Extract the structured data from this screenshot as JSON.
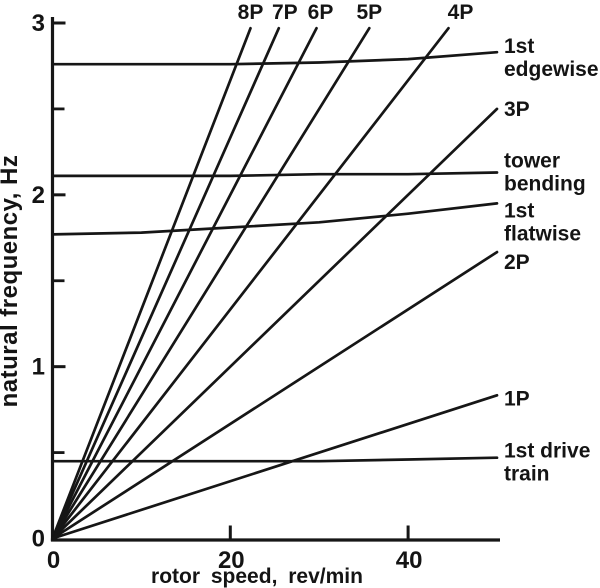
{
  "chart_data": {
    "type": "line",
    "title": "",
    "xlabel": "rotor speed, rev/min",
    "ylabel": "natural frequency, Hz",
    "xlim": [
      0,
      50
    ],
    "ylim": [
      0,
      3
    ],
    "x_ticks_major": [
      0,
      20,
      40
    ],
    "y_ticks_major": [
      0,
      1,
      2,
      3
    ],
    "y_ticks_minor": [
      0.5,
      1.5,
      2.5
    ],
    "grid": false,
    "legend_position": "inline-end-labels",
    "ink_color": "#161616",
    "background_color": "#ffffff",
    "harmonics_rule": "nP line: frequency (Hz) = n x rotor speed (rev/min) / 60",
    "harmonic_display_cap_hz": 2.97,
    "series": [
      {
        "name": "8P",
        "kind": "per_rev_harmonic",
        "per_rev": 8,
        "label": "8P",
        "label_placement": "top"
      },
      {
        "name": "7P",
        "kind": "per_rev_harmonic",
        "per_rev": 7,
        "label": "7P",
        "label_placement": "top",
        "label_dx": 6
      },
      {
        "name": "6P",
        "kind": "per_rev_harmonic",
        "per_rev": 6,
        "label": "6P",
        "label_placement": "top",
        "label_dx": 4
      },
      {
        "name": "5P",
        "kind": "per_rev_harmonic",
        "per_rev": 5,
        "label": "5P",
        "label_placement": "top"
      },
      {
        "name": "4P",
        "kind": "per_rev_harmonic",
        "per_rev": 4,
        "label": "4P",
        "label_placement": "top",
        "label_dx": 12
      },
      {
        "name": "3P",
        "kind": "per_rev_harmonic",
        "per_rev": 3,
        "label": "3P",
        "label_placement": "right"
      },
      {
        "name": "2P",
        "kind": "per_rev_harmonic",
        "per_rev": 2,
        "label": "2P",
        "label_placement": "right",
        "label_dy": 10
      },
      {
        "name": "1P",
        "kind": "per_rev_harmonic",
        "per_rev": 1,
        "label": "1P",
        "label_placement": "right",
        "label_dy": 3
      },
      {
        "name": "1st edgewise",
        "kind": "mode",
        "x": [
          0,
          10,
          20,
          30,
          40,
          50
        ],
        "y": [
          2.76,
          2.76,
          2.76,
          2.77,
          2.79,
          2.83
        ],
        "label_lines": [
          "1st",
          "edgewise"
        ],
        "label_placement": "right"
      },
      {
        "name": "tower bending",
        "kind": "mode",
        "x": [
          0,
          10,
          20,
          30,
          40,
          50
        ],
        "y": [
          2.11,
          2.11,
          2.11,
          2.12,
          2.12,
          2.13
        ],
        "label_lines": [
          "tower",
          "bending"
        ],
        "label_placement": "right",
        "label_dy": -6
      },
      {
        "name": "1st flatwise",
        "kind": "mode",
        "x": [
          0,
          10,
          20,
          30,
          40,
          50
        ],
        "y": [
          1.77,
          1.78,
          1.81,
          1.84,
          1.89,
          1.95
        ],
        "label_lines": [
          "1st",
          "flatwise"
        ],
        "label_placement": "right",
        "label_dy": 13
      },
      {
        "name": "1st drive train",
        "kind": "mode",
        "x": [
          0,
          10,
          20,
          30,
          40,
          50
        ],
        "y": [
          0.45,
          0.45,
          0.45,
          0.45,
          0.46,
          0.47
        ],
        "label_lines": [
          "1st drive",
          "train"
        ],
        "label_placement": "right",
        "label_dy": -1
      }
    ]
  }
}
